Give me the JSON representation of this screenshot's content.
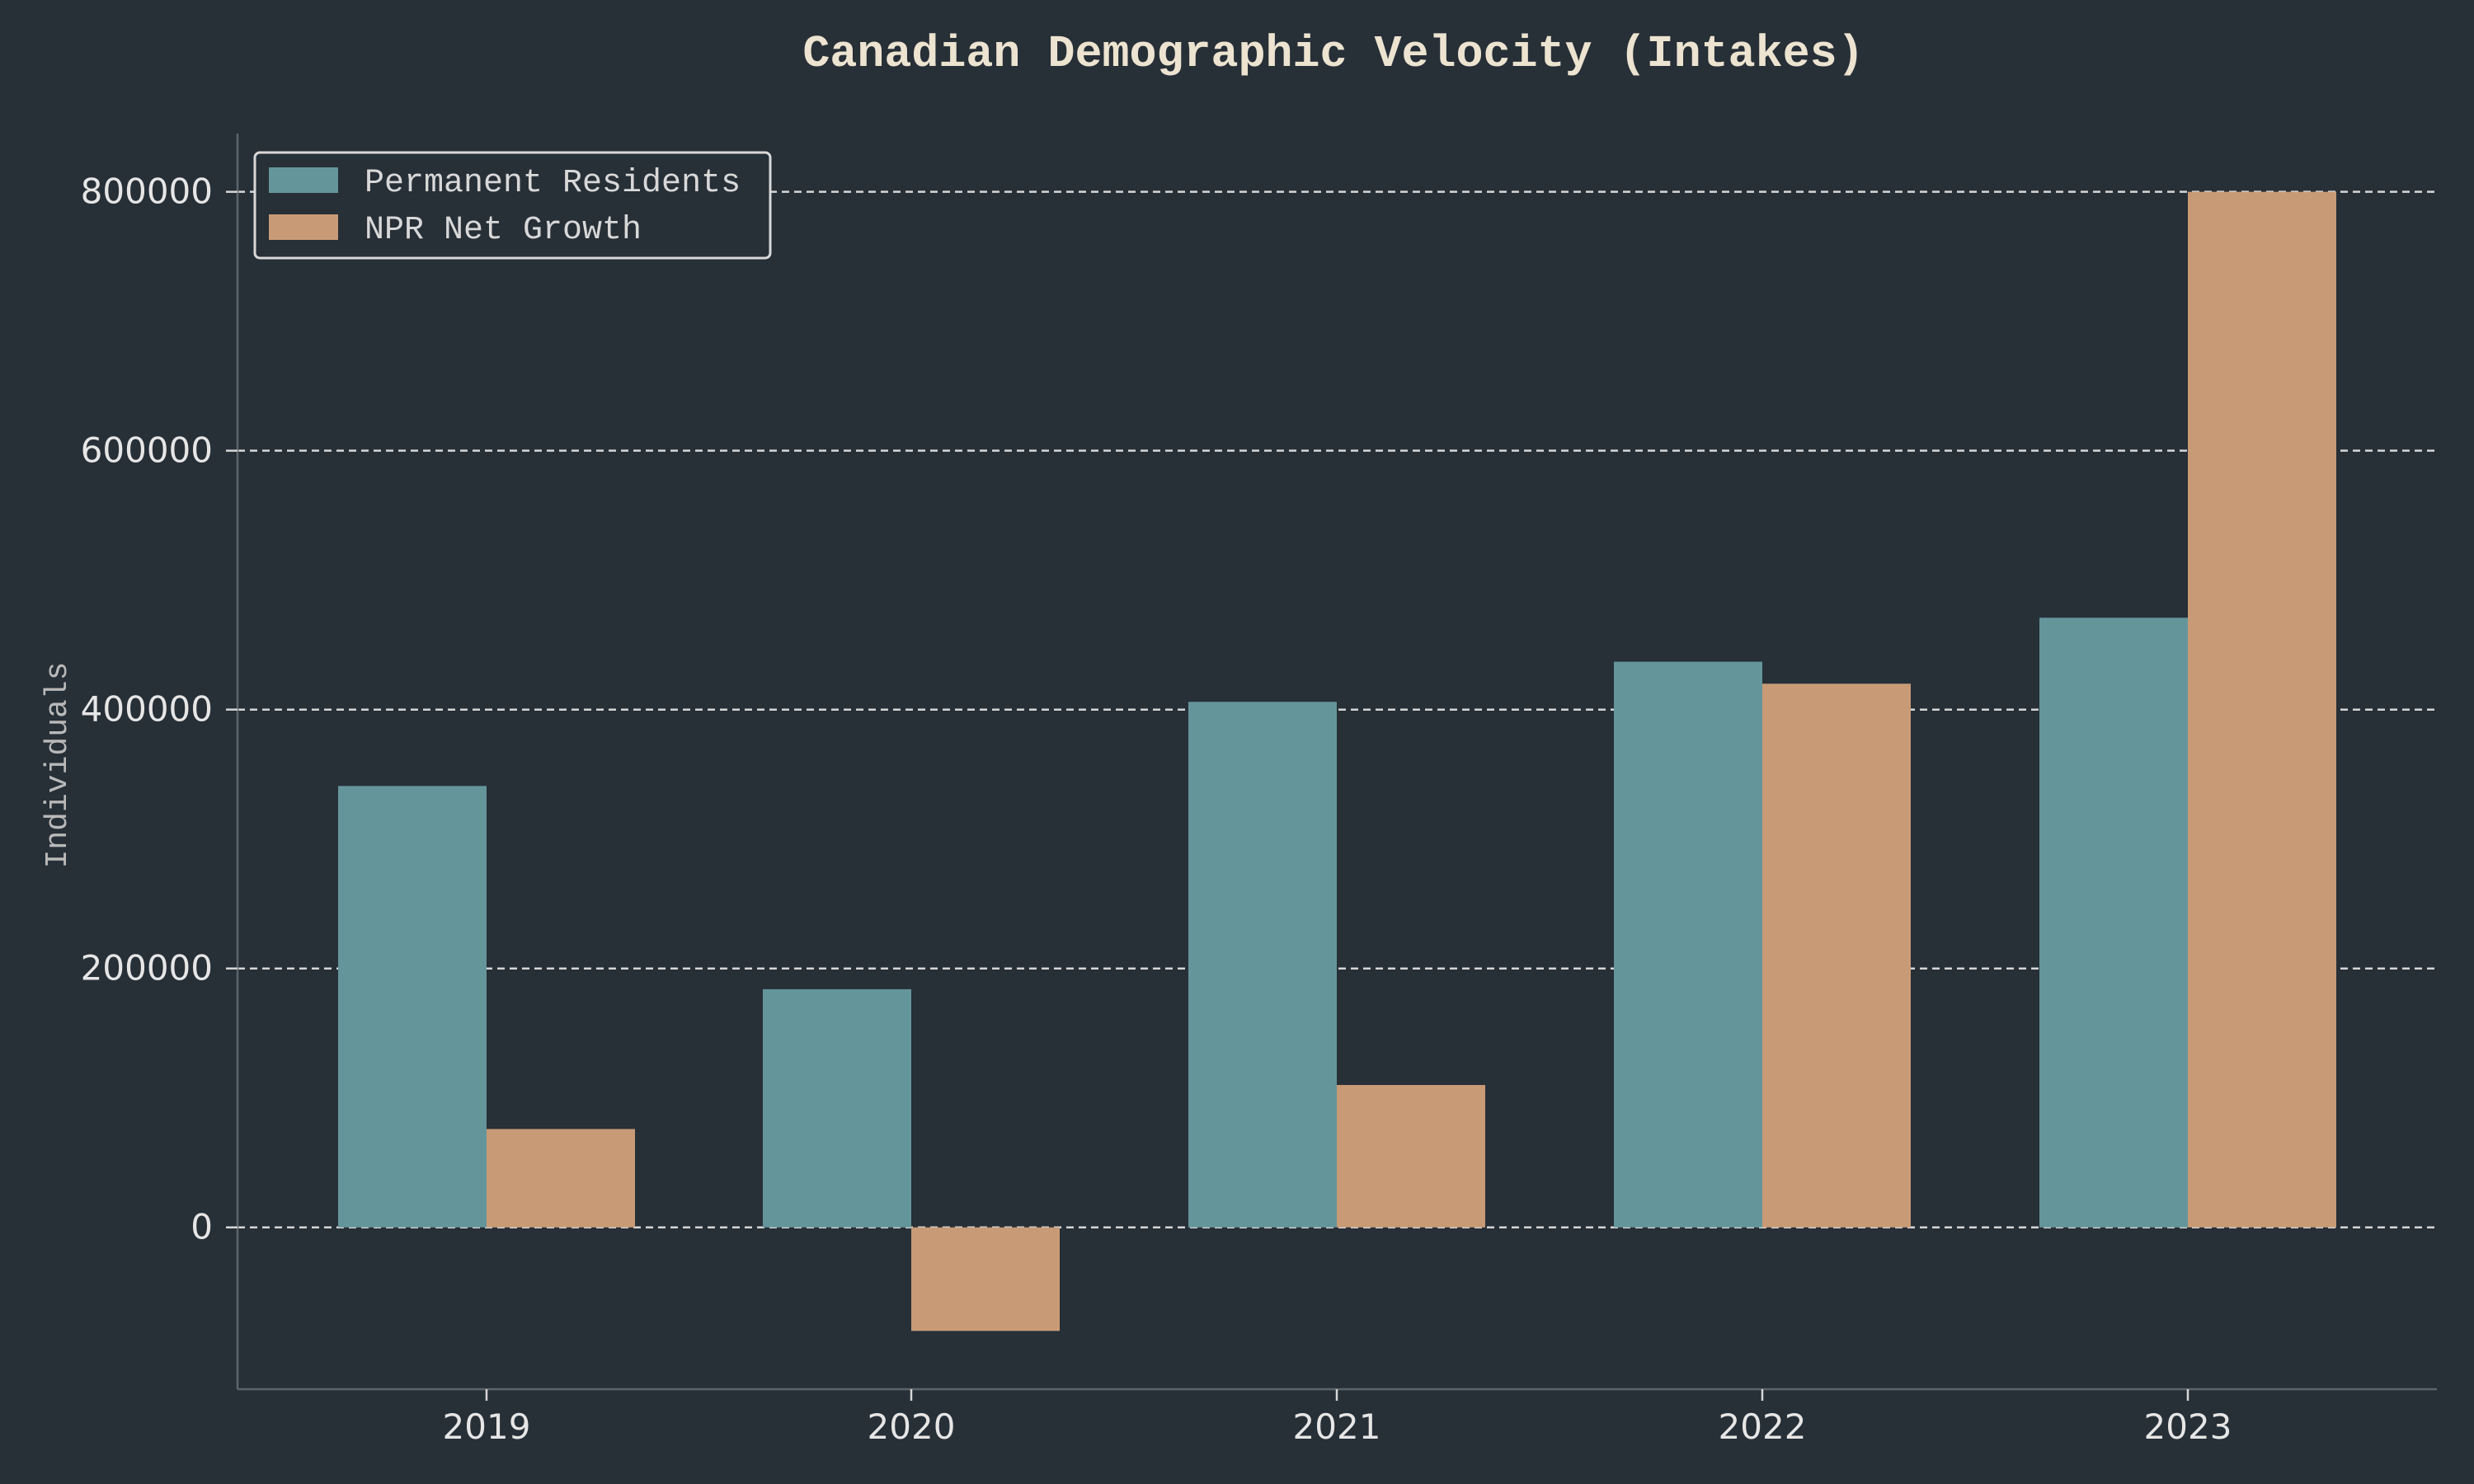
{
  "chart_data": {
    "type": "bar",
    "title": "Canadian Demographic Velocity (Intakes)",
    "xlabel": "",
    "ylabel": "Individuals",
    "categories": [
      "2019",
      "2020",
      "2021",
      "2022",
      "2023"
    ],
    "series": [
      {
        "name": "Permanent Residents",
        "values": [
          341000,
          184000,
          406000,
          437000,
          471000
        ],
        "color": "#64959b"
      },
      {
        "name": "NPR Net Growth",
        "values": [
          76000,
          -80000,
          110000,
          420000,
          800000
        ],
        "color": "#c89b76"
      }
    ],
    "ylim": [
      -125000,
      845000
    ],
    "yticks": [
      0,
      200000,
      400000,
      600000,
      800000
    ],
    "ytick_labels": [
      "0",
      "200000",
      "400000",
      "600000",
      "800000"
    ],
    "grid": true,
    "legend_position": "top-left"
  }
}
